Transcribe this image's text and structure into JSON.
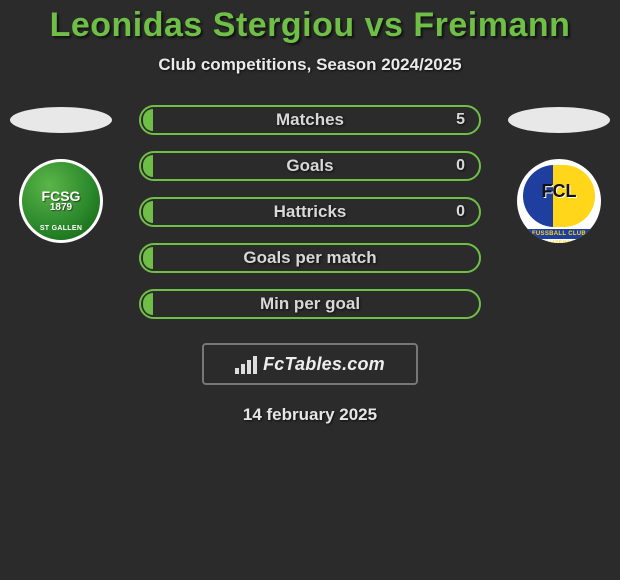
{
  "title": "Leonidas Stergiou vs Freimann",
  "subtitle": "Club competitions, Season 2024/2025",
  "date": "14 february 2025",
  "brand": "FcTables.com",
  "colors": {
    "accent": "#6fbf47",
    "background": "#2b2b2b",
    "text": "#d8d8d8",
    "border": "#777777"
  },
  "left_club": {
    "short": "FCSG",
    "year": "1879",
    "city": "ST GALLEN"
  },
  "right_club": {
    "short": "FCL",
    "band": "FUSSBALL CLUB LUZERN"
  },
  "stats": [
    {
      "label": "Matches",
      "value": "5",
      "fill_pct": 3
    },
    {
      "label": "Goals",
      "value": "0",
      "fill_pct": 3
    },
    {
      "label": "Hattricks",
      "value": "0",
      "fill_pct": 3
    },
    {
      "label": "Goals per match",
      "value": "",
      "fill_pct": 3
    },
    {
      "label": "Min per goal",
      "value": "",
      "fill_pct": 3
    }
  ]
}
